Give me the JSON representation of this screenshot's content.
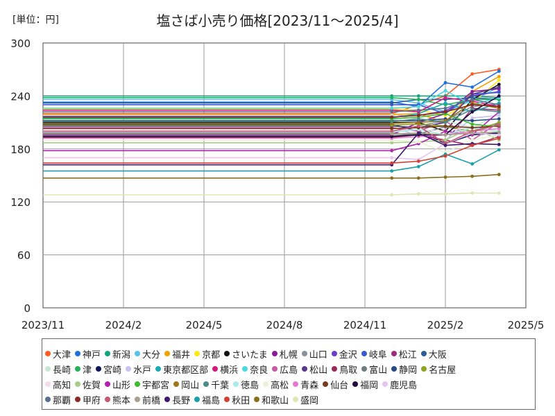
{
  "header": {
    "unit_label": "[単位：円]",
    "title": "塩さば小売り価格[2023/11～2025/4]"
  },
  "chart_data": {
    "type": "line",
    "title": "塩さば小売り価格[2023/11～2025/4]",
    "unit": "[単位：円]",
    "x_tick_labels": [
      "2023/11",
      "2024/2",
      "2024/5",
      "2024/8",
      "2024/11",
      "2025/2",
      "2025/5"
    ],
    "x_ticks": [
      "2023-11",
      "2024-02",
      "2024-05",
      "2024-08",
      "2024-11",
      "2025-02",
      "2025-05"
    ],
    "y_ticks": [
      0,
      60,
      120,
      180,
      240,
      300
    ],
    "ylim": [
      0,
      300
    ],
    "xlim": [
      "2023-11",
      "2025-05"
    ],
    "grid": true,
    "legend_position": "bottom",
    "x": [
      "2023-11",
      "2024-12",
      "2025-01",
      "2025-02",
      "2025-03",
      "2025-04"
    ],
    "series": [
      {
        "name": "大津",
        "color": "#ff5a1f",
        "values": [
          220,
          220,
          230,
          240,
          265,
          270
        ]
      },
      {
        "name": "神戸",
        "color": "#1f6fe0",
        "values": [
          233,
          233,
          228,
          255,
          250,
          268
        ]
      },
      {
        "name": "新潟",
        "color": "#14a37f",
        "values": [
          240,
          240,
          240,
          240,
          240,
          238
        ]
      },
      {
        "name": "大分",
        "color": "#5bc0eb",
        "values": [
          236,
          236,
          232,
          222,
          235,
          250
        ]
      },
      {
        "name": "福井",
        "color": "#f6a000",
        "values": [
          219,
          219,
          220,
          210,
          245,
          262
        ]
      },
      {
        "name": "京都",
        "color": "#ffe619",
        "values": [
          225,
          225,
          224,
          218,
          232,
          258
        ]
      },
      {
        "name": "さいたま",
        "color": "#111111",
        "values": [
          210,
          210,
          210,
          200,
          236,
          253
        ]
      },
      {
        "name": "札幌",
        "color": "#8b1a9a",
        "values": [
          196,
          196,
          210,
          220,
          245,
          248
        ]
      },
      {
        "name": "山口",
        "color": "#8a919c",
        "values": [
          200,
          200,
          206,
          212,
          228,
          231
        ]
      },
      {
        "name": "金沢",
        "color": "#6f3bc7",
        "values": [
          217,
          217,
          218,
          223,
          240,
          245
        ]
      },
      {
        "name": "岐阜",
        "color": "#3a5bd0",
        "values": [
          230,
          230,
          230,
          220,
          242,
          244
        ]
      },
      {
        "name": "松江",
        "color": "#9b2c7d",
        "values": [
          198,
          198,
          196,
          188,
          226,
          224
        ]
      },
      {
        "name": "大阪",
        "color": "#2d5c9e",
        "values": [
          232,
          232,
          236,
          236,
          238,
          236
        ]
      },
      {
        "name": "長崎",
        "color": "#c8e6d8",
        "values": [
          218,
          218,
          214,
          212,
          204,
          220
        ]
      },
      {
        "name": "津",
        "color": "#21b35a",
        "values": [
          238,
          238,
          236,
          230,
          236,
          236
        ]
      },
      {
        "name": "宮崎",
        "color": "#0c1757",
        "values": [
          208,
          208,
          200,
          186,
          196,
          198
        ]
      },
      {
        "name": "水戸",
        "color": "#c7c2ef",
        "values": [
          205,
          205,
          195,
          190,
          215,
          218
        ]
      },
      {
        "name": "東京都区部",
        "color": "#1aa9b5",
        "values": [
          215,
          215,
          220,
          232,
          222,
          232
        ]
      },
      {
        "name": "横浜",
        "color": "#d6197a",
        "values": [
          224,
          224,
          222,
          238,
          234,
          228
        ]
      },
      {
        "name": "奈良",
        "color": "#4ad9de",
        "values": [
          226,
          226,
          228,
          246,
          230,
          238
        ]
      },
      {
        "name": "広島",
        "color": "#c75aa4",
        "values": [
          204,
          204,
          200,
          212,
          190,
          210
        ]
      },
      {
        "name": "松山",
        "color": "#5a3a8a",
        "values": [
          206,
          206,
          204,
          210,
          242,
          250
        ]
      },
      {
        "name": "鳥取",
        "color": "#9b2a55",
        "values": [
          193,
          193,
          196,
          190,
          184,
          194
        ]
      },
      {
        "name": "富山",
        "color": "#6e7f82",
        "values": [
          195,
          195,
          197,
          205,
          200,
          208
        ]
      },
      {
        "name": "静岡",
        "color": "#254c86",
        "values": [
          212,
          212,
          212,
          214,
          212,
          214
        ]
      },
      {
        "name": "名古屋",
        "color": "#8ea31f",
        "values": [
          207,
          207,
          208,
          206,
          200,
          210
        ]
      },
      {
        "name": "高知",
        "color": "#f3dde8",
        "values": [
          201,
          201,
          202,
          200,
          205,
          206
        ]
      },
      {
        "name": "佐賀",
        "color": "#a7cf8a",
        "values": [
          187,
          187,
          188,
          190,
          205,
          190
        ]
      },
      {
        "name": "山形",
        "color": "#b322b0",
        "values": [
          178,
          178,
          186,
          200,
          196,
          222
        ]
      },
      {
        "name": "宇都宮",
        "color": "#3cba2b",
        "values": [
          214,
          214,
          216,
          220,
          208,
          205
        ]
      },
      {
        "name": "岡山",
        "color": "#a07418",
        "values": [
          209,
          209,
          210,
          212,
          232,
          226
        ]
      },
      {
        "name": "千葉",
        "color": "#4a8a87",
        "values": [
          211,
          211,
          214,
          210,
          225,
          222
        ]
      },
      {
        "name": "徳島",
        "color": "#a7ecea",
        "values": [
          199,
          199,
          202,
          196,
          204,
          200
        ]
      },
      {
        "name": "高松",
        "color": "#e8f2d4",
        "values": [
          190,
          190,
          188,
          176,
          190,
          196
        ]
      },
      {
        "name": "青森",
        "color": "#e67ad1",
        "values": [
          192,
          192,
          194,
          196,
          200,
          203
        ]
      },
      {
        "name": "仙台",
        "color": "#7a3a1f",
        "values": [
          203,
          203,
          204,
          206,
          204,
          206
        ]
      },
      {
        "name": "福岡",
        "color": "#230a3a",
        "values": [
          194,
          194,
          196,
          196,
          222,
          240
        ]
      },
      {
        "name": "鹿児島",
        "color": "#e8c3f0",
        "values": [
          170,
          170,
          168,
          186,
          198,
          196
        ]
      },
      {
        "name": "那覇",
        "color": "#5a6e8f",
        "values": [
          222,
          222,
          224,
          226,
          236,
          230
        ]
      },
      {
        "name": "甲府",
        "color": "#8a2a1f",
        "values": [
          216,
          216,
          218,
          222,
          230,
          228
        ]
      },
      {
        "name": "熊本",
        "color": "#c45a6e",
        "values": [
          200,
          200,
          206,
          186,
          200,
          207
        ]
      },
      {
        "name": "前橋",
        "color": "#a8a08a",
        "values": [
          197,
          197,
          198,
          196,
          198,
          199
        ]
      },
      {
        "name": "長野",
        "color": "#3f1a6e",
        "values": [
          162,
          162,
          198,
          184,
          186,
          185
        ]
      },
      {
        "name": "福島",
        "color": "#1aa0a8",
        "values": [
          155,
          155,
          160,
          174,
          163,
          179
        ]
      },
      {
        "name": "秋田",
        "color": "#d54035",
        "values": [
          164,
          164,
          166,
          172,
          184,
          192
        ]
      },
      {
        "name": "和歌山",
        "color": "#8a6e1a",
        "values": [
          147,
          147,
          147,
          148,
          149,
          151
        ]
      },
      {
        "name": "盛岡",
        "color": "#dde8b8",
        "values": [
          128,
          128,
          129,
          129,
          130,
          130
        ]
      }
    ]
  }
}
